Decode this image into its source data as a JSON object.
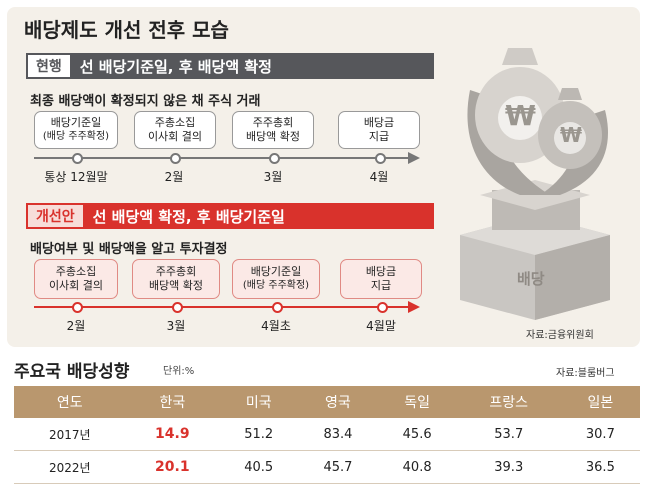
{
  "header": {
    "title": "배당제도 개선 전후 모습"
  },
  "current": {
    "tag": "현행",
    "headline": "선 배당기준일, 후 배당액 확정",
    "subtitle": "최종 배당액이 확정되지 않은 채 주식 거래",
    "steps": [
      {
        "l1": "배당기준일",
        "l2": "(배당 주주확정)"
      },
      {
        "l1": "주총소집",
        "l2": "이사회 결의"
      },
      {
        "l1": "주주총회",
        "l2": "배당액 확정"
      },
      {
        "l1": "배당금",
        "l2": "지급"
      }
    ],
    "times": [
      "통상 12월말",
      "2월",
      "3월",
      "4월"
    ]
  },
  "improved": {
    "tag": "개선안",
    "headline": "선 배당액 확정, 후 배당기준일",
    "subtitle": "배당여부 및 배당액을 알고 투자결정",
    "steps": [
      {
        "l1": "주총소집",
        "l2": "이사회 결의"
      },
      {
        "l1": "주주총회",
        "l2": "배당액 확정"
      },
      {
        "l1": "배당기준일",
        "l2": "(배당 주주확정)"
      },
      {
        "l1": "배당금",
        "l2": "지급"
      }
    ],
    "times": [
      "2월",
      "3월",
      "4월초",
      "4월말"
    ]
  },
  "illustration": {
    "seal_text": "배당",
    "coin_symbol": "₩"
  },
  "source_top": "자료:금융위원회",
  "table_section": {
    "title": "주요국 배당성향",
    "unit": "단위:%",
    "source": "자료:블룸버그",
    "headers": [
      "연도",
      "한국",
      "미국",
      "영국",
      "독일",
      "프랑스",
      "일본"
    ],
    "rows": [
      [
        "2017년",
        "14.9",
        "51.2",
        "83.4",
        "45.6",
        "53.7",
        "30.7"
      ],
      [
        "2022년",
        "20.1",
        "40.5",
        "45.7",
        "40.8",
        "39.3",
        "36.5"
      ]
    ]
  },
  "colors": {
    "current_bar": "#56575b",
    "improved_bar": "#d9322c",
    "table_header": "#b9976e",
    "highlight": "#d9322c"
  }
}
